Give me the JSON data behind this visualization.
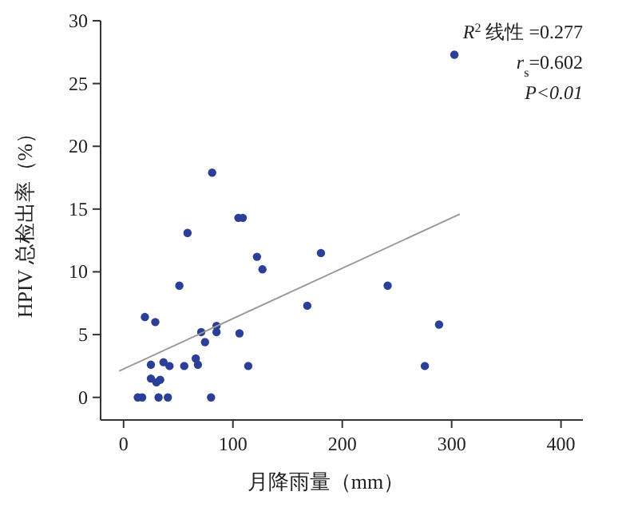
{
  "chart_data": {
    "type": "scatter",
    "xlabel": "月降雨量（mm）",
    "ylabel": "HPIV 总检出率（%）",
    "xlim": [
      -21,
      420
    ],
    "ylim": [
      -1.8,
      30
    ],
    "xticks": [
      0,
      100,
      200,
      300,
      400
    ],
    "yticks": [
      0,
      5,
      10,
      15,
      20,
      25,
      30
    ],
    "grid": false,
    "marker": "circle",
    "series": [
      {
        "color": "#2b3f98",
        "x": [
          81,
          105,
          109,
          58.5,
          122,
          180.5,
          127,
          51,
          241.5,
          168,
          19.5,
          29,
          85,
          71,
          85,
          106,
          74.5,
          66,
          25,
          36.5,
          42,
          55.5,
          68,
          114,
          25,
          30,
          33.5,
          13,
          17,
          32,
          40.5,
          80,
          302.5,
          288.5,
          275.5
        ],
        "values": [
          17.9,
          14.3,
          14.3,
          13.1,
          11.2,
          11.5,
          10.2,
          8.9,
          8.9,
          7.3,
          6.4,
          6.0,
          5.7,
          5.2,
          5.2,
          5.1,
          4.4,
          3.1,
          2.6,
          2.8,
          2.5,
          2.5,
          2.6,
          2.5,
          1.5,
          1.2,
          1.4,
          0,
          0,
          0,
          0,
          0,
          27.3,
          5.8,
          2.5
        ]
      },
      {
        "type": "line",
        "color": "#999999",
        "marker": "none",
        "x": [
          -4,
          307.5
        ],
        "values": [
          2.1,
          14.6
        ]
      }
    ],
    "annotations": [
      "R$^{2}$ 线性 =0.277",
      "r$_{s}$=0.602",
      "P<0.01"
    ]
  }
}
